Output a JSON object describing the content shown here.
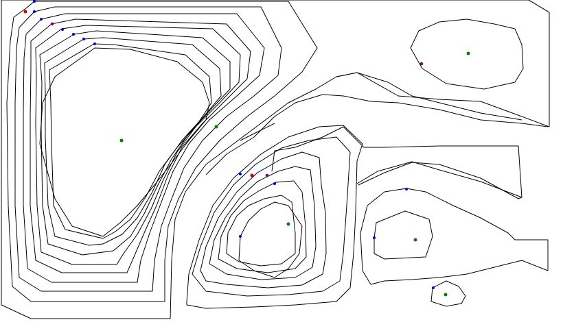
{
  "colors": {
    "background": "#ffffff",
    "contour_line": "#000000",
    "point_green": "#008000",
    "point_blue": "#0000cc",
    "point_red": "#cc0000",
    "point_purple": "#800080"
  },
  "diagram": {
    "type": "contour-plot",
    "contour_line_count": 27,
    "points": {
      "green_centers": 6,
      "blue_markers": 14,
      "red_markers": 2,
      "purple_markers": 3
    }
  }
}
